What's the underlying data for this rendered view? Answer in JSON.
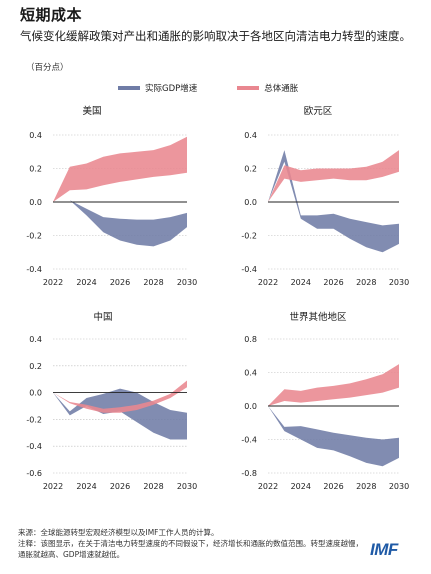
{
  "title": "短期成本",
  "subtitle": "气候变化缓解政策对产出和通胀的影响取决于各地区向清洁电力转型的速度。",
  "unit_note": "（百分点）",
  "legend": [
    {
      "label": "实际GDP增速",
      "color": "#6f7ca6"
    },
    {
      "label": "总体通胀",
      "color": "#e98790"
    }
  ],
  "footer": {
    "source": "来源：全球能源转型宏观经济模型以及IMF工作人员的计算。",
    "note": "注释：该图显示，在关于清洁电力转型速度的不同假设下，经济增长和通胀的数值范围。转型速度越慢，通胀就越高、GDP增速就越低。",
    "logo": "IMF"
  },
  "colors": {
    "gdp": "#6f7ca6",
    "inflation": "#e98790"
  },
  "chart_data": [
    {
      "type": "area",
      "title": "美国",
      "x": [
        2022,
        2023,
        2024,
        2025,
        2026,
        2027,
        2028,
        2029,
        2030
      ],
      "xticks": [
        2022,
        2024,
        2026,
        2028,
        2030
      ],
      "ylim": [
        -0.4,
        0.4
      ],
      "yticks": [
        -0.4,
        -0.2,
        0.0,
        0.2,
        0.4
      ],
      "series": [
        {
          "name": "实际GDP增速",
          "upper": [
            0.0,
            0.01,
            -0.04,
            -0.09,
            -0.1,
            -0.105,
            -0.105,
            -0.09,
            -0.065
          ],
          "lower": [
            0.0,
            0.01,
            -0.08,
            -0.18,
            -0.23,
            -0.255,
            -0.265,
            -0.23,
            -0.15
          ]
        },
        {
          "name": "总体通胀",
          "upper": [
            0.0,
            0.21,
            0.23,
            0.27,
            0.29,
            0.3,
            0.31,
            0.34,
            0.39
          ],
          "lower": [
            0.0,
            0.07,
            0.075,
            0.1,
            0.12,
            0.135,
            0.15,
            0.16,
            0.175
          ]
        }
      ]
    },
    {
      "type": "area",
      "title": "欧元区",
      "x": [
        2022,
        2023,
        2024,
        2025,
        2026,
        2027,
        2028,
        2029,
        2030
      ],
      "xticks": [
        2022,
        2024,
        2026,
        2028,
        2030
      ],
      "ylim": [
        -0.4,
        0.4
      ],
      "yticks": [
        -0.4,
        -0.2,
        0.0,
        0.2,
        0.4
      ],
      "series": [
        {
          "name": "实际GDP增速",
          "upper": [
            0.0,
            0.31,
            -0.08,
            -0.08,
            -0.07,
            -0.1,
            -0.12,
            -0.14,
            -0.13
          ],
          "lower": [
            0.0,
            0.24,
            -0.1,
            -0.16,
            -0.16,
            -0.22,
            -0.27,
            -0.3,
            -0.25
          ]
        },
        {
          "name": "总体通胀",
          "upper": [
            0.0,
            0.22,
            0.19,
            0.2,
            0.2,
            0.2,
            0.21,
            0.24,
            0.31
          ],
          "lower": [
            0.0,
            0.14,
            0.12,
            0.13,
            0.14,
            0.13,
            0.13,
            0.15,
            0.18
          ]
        }
      ]
    },
    {
      "type": "area",
      "title": "中国",
      "x": [
        2022,
        2023,
        2024,
        2025,
        2026,
        2027,
        2028,
        2029,
        2030
      ],
      "xticks": [
        2022,
        2024,
        2026,
        2028,
        2030
      ],
      "ylim": [
        -0.6,
        0.4
      ],
      "yticks": [
        -0.6,
        -0.4,
        -0.2,
        0.0,
        0.2,
        0.4
      ],
      "series": [
        {
          "name": "实际GDP增速",
          "upper": [
            0.0,
            -0.14,
            -0.04,
            -0.01,
            0.03,
            0.0,
            -0.07,
            -0.13,
            -0.15
          ],
          "lower": [
            0.0,
            -0.17,
            -0.1,
            -0.16,
            -0.14,
            -0.22,
            -0.3,
            -0.35,
            -0.35
          ]
        },
        {
          "name": "总体通胀",
          "upper": [
            0.0,
            -0.07,
            -0.09,
            -0.12,
            -0.11,
            -0.09,
            -0.06,
            -0.01,
            0.09
          ],
          "lower": [
            0.0,
            -0.08,
            -0.12,
            -0.15,
            -0.15,
            -0.13,
            -0.09,
            -0.04,
            0.04
          ]
        }
      ]
    },
    {
      "type": "area",
      "title": "世界其他地区",
      "x": [
        2022,
        2023,
        2024,
        2025,
        2026,
        2027,
        2028,
        2029,
        2030
      ],
      "xticks": [
        2022,
        2024,
        2026,
        2028,
        2030
      ],
      "ylim": [
        -0.8,
        0.8
      ],
      "yticks": [
        -0.8,
        -0.4,
        0.0,
        0.4,
        0.8
      ],
      "series": [
        {
          "name": "实际GDP增速",
          "upper": [
            0.0,
            -0.25,
            -0.24,
            -0.28,
            -0.32,
            -0.35,
            -0.38,
            -0.4,
            -0.38
          ],
          "lower": [
            0.0,
            -0.3,
            -0.4,
            -0.5,
            -0.53,
            -0.6,
            -0.68,
            -0.72,
            -0.62
          ]
        },
        {
          "name": "总体通胀",
          "upper": [
            0.0,
            0.2,
            0.18,
            0.22,
            0.24,
            0.27,
            0.32,
            0.38,
            0.5
          ],
          "lower": [
            0.0,
            0.06,
            0.04,
            0.06,
            0.08,
            0.1,
            0.13,
            0.16,
            0.22
          ]
        }
      ]
    }
  ]
}
